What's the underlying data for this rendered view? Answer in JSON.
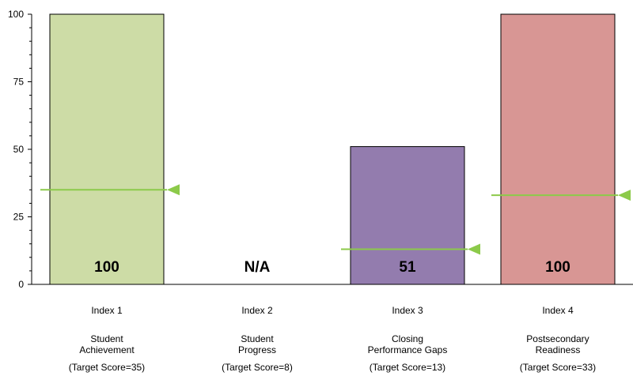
{
  "chart_data": {
    "type": "bar",
    "title": "",
    "xlabel": "",
    "ylabel": "",
    "ylim": [
      0,
      100
    ],
    "yticks": [
      0,
      25,
      50,
      75,
      100
    ],
    "grid": false,
    "categories": [
      {
        "index": "Index 1",
        "name_lines": [
          "Student",
          "Achievement"
        ],
        "target_text": "(Target Score=35)"
      },
      {
        "index": "Index 2",
        "name_lines": [
          "Student",
          "Progress"
        ],
        "target_text": "(Target Score=8)"
      },
      {
        "index": "Index 3",
        "name_lines": [
          "Closing",
          "Performance Gaps"
        ],
        "target_text": "(Target Score=13)"
      },
      {
        "index": "Index 4",
        "name_lines": [
          "Postsecondary",
          "Readiness"
        ],
        "target_text": "(Target Score=33)"
      }
    ],
    "values": [
      100,
      null,
      51,
      100
    ],
    "value_labels": [
      "100",
      "N/A",
      "51",
      "100"
    ],
    "targets": [
      35,
      null,
      13,
      33
    ],
    "bar_colors": [
      "#cddca6",
      null,
      "#937cae",
      "#d89694"
    ],
    "target_line_color": "#8cca4a"
  }
}
